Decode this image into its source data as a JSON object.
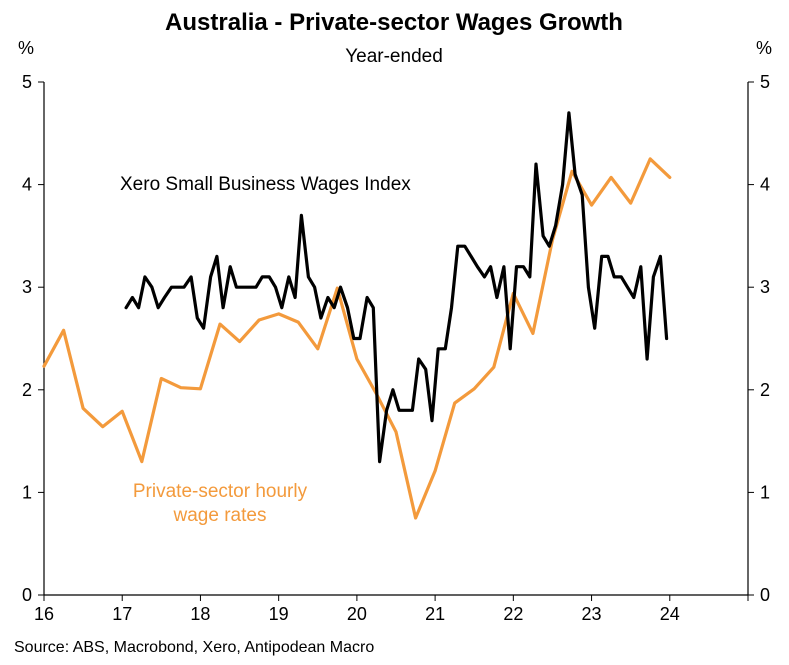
{
  "chart_data": {
    "type": "line",
    "title": "Australia - Private-sector Wages Growth",
    "subtitle": "Year-ended",
    "ylabel_left": "%",
    "ylabel_right": "%",
    "ylim": [
      0,
      5
    ],
    "xlim": [
      16,
      25
    ],
    "x_ticks": [
      "16",
      "17",
      "18",
      "19",
      "20",
      "21",
      "22",
      "23",
      "24"
    ],
    "y_ticks": [
      "0",
      "1",
      "2",
      "3",
      "4",
      "5"
    ],
    "grid": false,
    "source": "Source: ABS, Macrobond, Xero, Antipodean Macro",
    "colors": {
      "xero": "#000000",
      "private": "#f39a3c"
    },
    "annotations": {
      "xero": "Xero Small Business Wages Index",
      "private_line1": "Private-sector hourly",
      "private_line2": "wage rates"
    },
    "series": [
      {
        "key": "private",
        "points": [
          [
            16.0,
            2.23
          ],
          [
            16.25,
            2.58
          ],
          [
            16.5,
            1.82
          ],
          [
            16.75,
            1.64
          ],
          [
            17.0,
            1.79
          ],
          [
            17.25,
            1.3
          ],
          [
            17.5,
            2.11
          ],
          [
            17.75,
            2.02
          ],
          [
            18.0,
            2.01
          ],
          [
            18.25,
            2.64
          ],
          [
            18.5,
            2.47
          ],
          [
            18.75,
            2.68
          ],
          [
            19.0,
            2.74
          ],
          [
            19.25,
            2.66
          ],
          [
            19.5,
            2.4
          ],
          [
            19.75,
            2.99
          ],
          [
            20.0,
            2.3
          ],
          [
            20.25,
            1.96
          ],
          [
            20.5,
            1.59
          ],
          [
            20.75,
            0.75
          ],
          [
            21.0,
            1.21
          ],
          [
            21.25,
            1.87
          ],
          [
            21.5,
            2.01
          ],
          [
            21.75,
            2.22
          ],
          [
            22.0,
            2.94
          ],
          [
            22.25,
            2.55
          ],
          [
            22.5,
            3.46
          ],
          [
            22.75,
            4.13
          ],
          [
            23.0,
            3.8
          ],
          [
            23.25,
            4.07
          ],
          [
            23.5,
            3.82
          ],
          [
            23.75,
            4.25
          ],
          [
            24.0,
            4.07
          ]
        ]
      },
      {
        "key": "xero",
        "points": [
          [
            17.05,
            2.8
          ],
          [
            17.13,
            2.9
          ],
          [
            17.21,
            2.8
          ],
          [
            17.29,
            3.1
          ],
          [
            17.38,
            3.0
          ],
          [
            17.46,
            2.8
          ],
          [
            17.54,
            2.9
          ],
          [
            17.63,
            3.0
          ],
          [
            17.71,
            3.0
          ],
          [
            17.79,
            3.0
          ],
          [
            17.88,
            3.1
          ],
          [
            17.96,
            2.7
          ],
          [
            18.04,
            2.6
          ],
          [
            18.13,
            3.1
          ],
          [
            18.21,
            3.3
          ],
          [
            18.29,
            2.8
          ],
          [
            18.38,
            3.2
          ],
          [
            18.46,
            3.0
          ],
          [
            18.54,
            3.0
          ],
          [
            18.63,
            3.0
          ],
          [
            18.71,
            3.0
          ],
          [
            18.79,
            3.1
          ],
          [
            18.88,
            3.1
          ],
          [
            18.96,
            3.0
          ],
          [
            19.04,
            2.8
          ],
          [
            19.13,
            3.1
          ],
          [
            19.21,
            2.9
          ],
          [
            19.29,
            3.7
          ],
          [
            19.38,
            3.1
          ],
          [
            19.46,
            3.0
          ],
          [
            19.54,
            2.7
          ],
          [
            19.63,
            2.9
          ],
          [
            19.71,
            2.8
          ],
          [
            19.79,
            3.0
          ],
          [
            19.88,
            2.8
          ],
          [
            19.96,
            2.5
          ],
          [
            20.04,
            2.5
          ],
          [
            20.13,
            2.9
          ],
          [
            20.21,
            2.8
          ],
          [
            20.29,
            1.3
          ],
          [
            20.38,
            1.8
          ],
          [
            20.46,
            2.0
          ],
          [
            20.54,
            1.8
          ],
          [
            20.63,
            1.8
          ],
          [
            20.71,
            1.8
          ],
          [
            20.79,
            2.3
          ],
          [
            20.88,
            2.2
          ],
          [
            20.96,
            1.7
          ],
          [
            21.04,
            2.4
          ],
          [
            21.13,
            2.4
          ],
          [
            21.21,
            2.8
          ],
          [
            21.29,
            3.4
          ],
          [
            21.38,
            3.4
          ],
          [
            21.46,
            3.3
          ],
          [
            21.54,
            3.2
          ],
          [
            21.63,
            3.1
          ],
          [
            21.71,
            3.2
          ],
          [
            21.79,
            2.9
          ],
          [
            21.88,
            3.2
          ],
          [
            21.96,
            2.4
          ],
          [
            22.04,
            3.2
          ],
          [
            22.13,
            3.2
          ],
          [
            22.21,
            3.1
          ],
          [
            22.29,
            4.2
          ],
          [
            22.38,
            3.5
          ],
          [
            22.46,
            3.4
          ],
          [
            22.54,
            3.6
          ],
          [
            22.63,
            4.0
          ],
          [
            22.71,
            4.7
          ],
          [
            22.79,
            4.1
          ],
          [
            22.88,
            3.9
          ],
          [
            22.96,
            3.0
          ],
          [
            23.04,
            2.6
          ],
          [
            23.13,
            3.3
          ],
          [
            23.21,
            3.3
          ],
          [
            23.29,
            3.1
          ],
          [
            23.38,
            3.1
          ],
          [
            23.46,
            3.0
          ],
          [
            23.54,
            2.9
          ],
          [
            23.63,
            3.2
          ],
          [
            23.71,
            2.3
          ],
          [
            23.79,
            3.1
          ],
          [
            23.88,
            3.3
          ],
          [
            23.96,
            2.5
          ]
        ]
      }
    ]
  }
}
